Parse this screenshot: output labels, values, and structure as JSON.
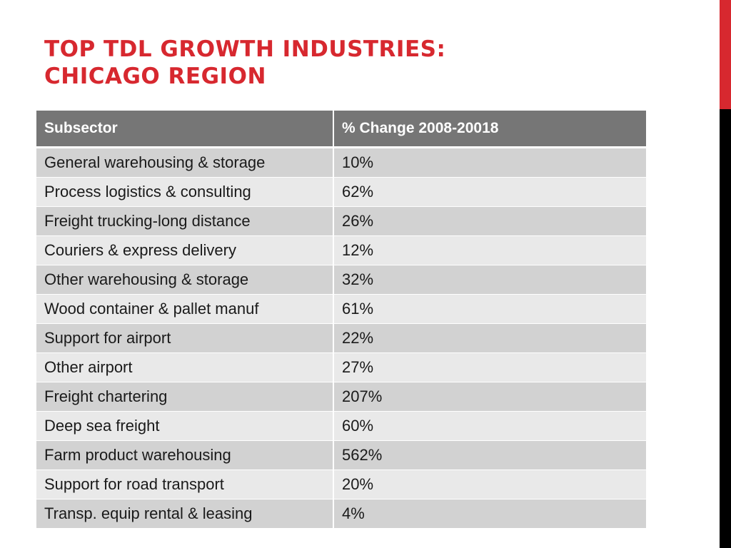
{
  "title": {
    "line1": "Top TDL Growth Industries:",
    "line2": "Chicago Region"
  },
  "table": {
    "headers": [
      "Subsector",
      "% Change 2008-20018"
    ],
    "rows": [
      {
        "subsector": "General warehousing & storage",
        "change": "10%"
      },
      {
        "subsector": "Process logistics & consulting",
        "change": "62%"
      },
      {
        "subsector": "Freight trucking-long distance",
        "change": "26%"
      },
      {
        "subsector": "Couriers & express delivery",
        "change": "12%"
      },
      {
        "subsector": "Other warehousing & storage",
        "change": "32%"
      },
      {
        "subsector": "Wood container & pallet manuf",
        "change": "61%"
      },
      {
        "subsector": "Support for airport",
        "change": "22%"
      },
      {
        "subsector": "Other airport",
        "change": "27%"
      },
      {
        "subsector": "Freight chartering",
        "change": "207%"
      },
      {
        "subsector": "Deep sea freight",
        "change": "60%"
      },
      {
        "subsector": "Farm product warehousing",
        "change": "562%"
      },
      {
        "subsector": "Support for road transport",
        "change": "20%"
      },
      {
        "subsector": "Transp. equip rental & leasing",
        "change": "4%"
      }
    ]
  },
  "colors": {
    "accent": "#d7282f",
    "header_bg": "#767676",
    "row_dark": "#d2d2d2",
    "row_light": "#e9e9e9"
  }
}
